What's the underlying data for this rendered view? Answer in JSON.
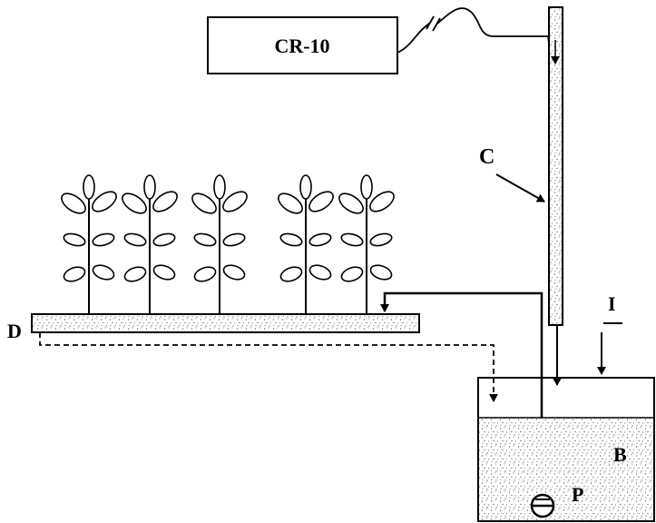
{
  "recorder": {
    "label": "CR-10"
  },
  "labels": {
    "column": "C",
    "tray": "D",
    "inflow": "I",
    "bath": "B",
    "pump": "P"
  },
  "plants": [
    {
      "id": 1
    },
    {
      "id": 2
    },
    {
      "id": 3
    },
    {
      "id": 4
    },
    {
      "id": 5
    }
  ]
}
